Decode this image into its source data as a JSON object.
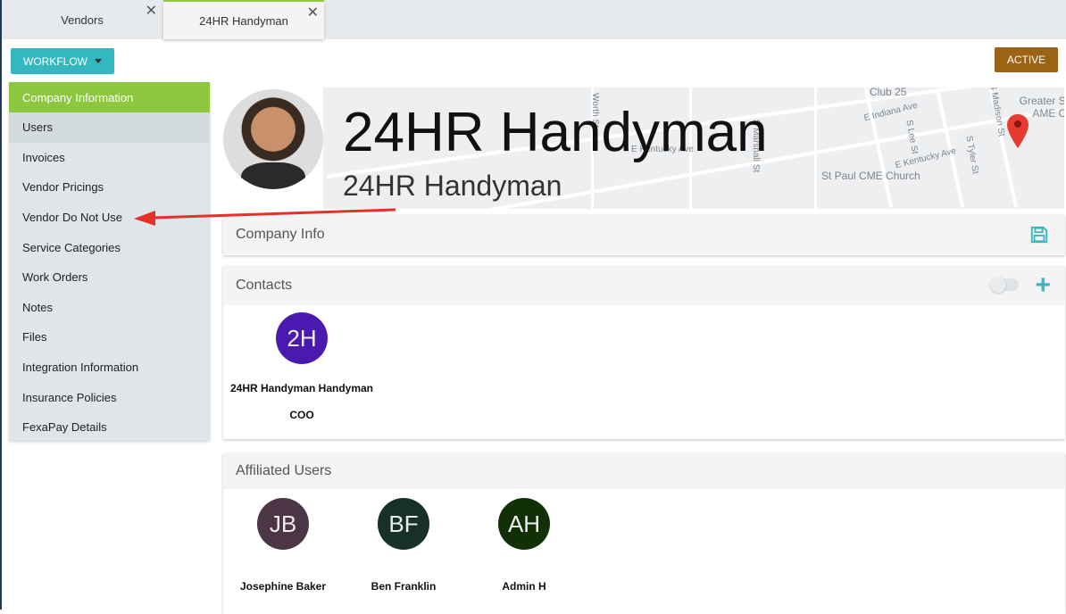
{
  "tabs": [
    {
      "label": "Vendors"
    },
    {
      "label": "24HR Handyman",
      "active": true
    }
  ],
  "toolbar": {
    "workflow_label": "WORKFLOW",
    "status_label": "ACTIVE"
  },
  "sidebar": {
    "items": [
      {
        "label": "Company Information",
        "active": true
      },
      {
        "label": "Users"
      },
      {
        "label": "Invoices"
      },
      {
        "label": "Vendor Pricings"
      },
      {
        "label": "Vendor Do Not Use"
      },
      {
        "label": "Service Categories"
      },
      {
        "label": "Work Orders"
      },
      {
        "label": "Notes"
      },
      {
        "label": "Files"
      },
      {
        "label": "Integration Information"
      },
      {
        "label": "Insurance Policies"
      },
      {
        "label": "FexaPay Details"
      }
    ]
  },
  "header": {
    "title": "24HR Handyman",
    "subtitle": "24HR Handyman"
  },
  "map": {
    "labels": [
      "Club 25",
      "E Indiana Ave",
      "S Lee St",
      "S Tyler St",
      "S Madison St",
      "E Kentucky Ave",
      "St Paul CME Church",
      "Greater St AME Cl",
      "E Kentucky Ave",
      "Worth St",
      "S Marshall St"
    ]
  },
  "company_info": {
    "title": "Company Info"
  },
  "contacts": {
    "title": "Contacts",
    "items": [
      {
        "initials": "2H",
        "name": "24HR Handyman Handyman",
        "role": "COO",
        "color": "#4a1ab0"
      }
    ]
  },
  "affiliated_users": {
    "title": "Affiliated Users",
    "items": [
      {
        "initials": "JB",
        "name": "Josephine Baker",
        "color": "#4c3545"
      },
      {
        "initials": "BF",
        "name": "Ben Franklin",
        "color": "#17302a"
      },
      {
        "initials": "AH",
        "name": "Admin H",
        "color": "#113006"
      }
    ]
  },
  "colors": {
    "accent": "#33b8bf",
    "active_green": "#8dc63f",
    "status": "#9a6414",
    "annotation_arrow": "#e8302a"
  }
}
